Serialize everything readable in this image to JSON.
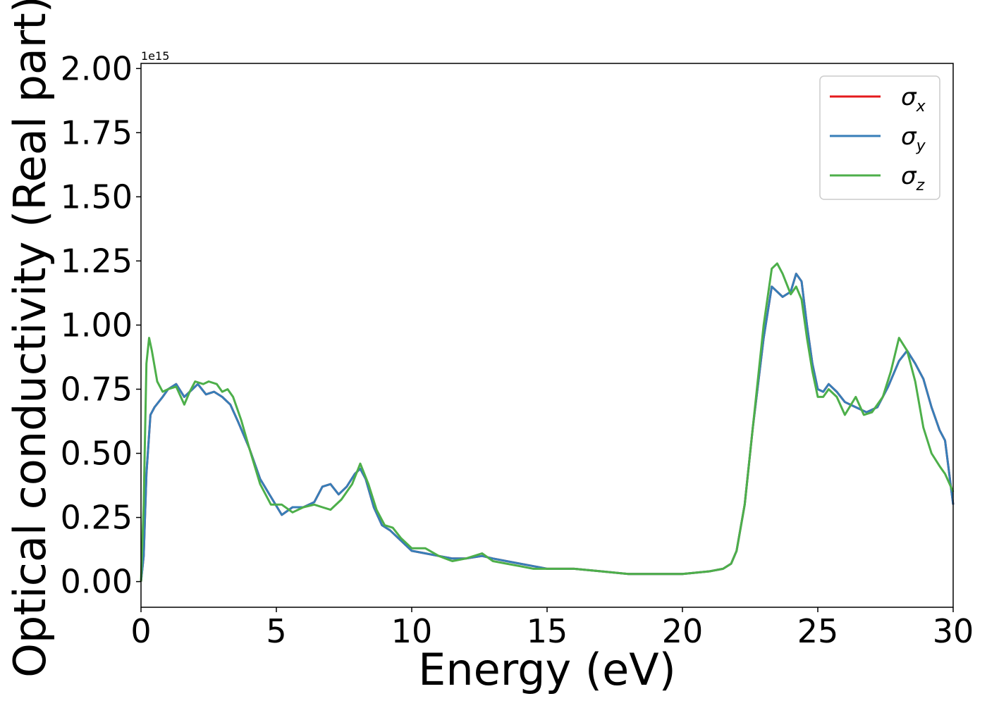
{
  "chart_data": {
    "type": "line",
    "title": "",
    "xlabel": "Energy (eV)",
    "ylabel": "Optical conductivity (Real part)",
    "y_offset_label": "1e15",
    "xlim": [
      0,
      30
    ],
    "ylim": [
      -0.1,
      2.02
    ],
    "x_ticks": [
      0,
      5,
      10,
      15,
      20,
      25,
      30
    ],
    "x_tick_labels": [
      "0",
      "5",
      "10",
      "15",
      "20",
      "25",
      "30"
    ],
    "y_ticks": [
      0,
      0.25,
      0.5,
      0.75,
      1.0,
      1.25,
      1.5,
      1.75,
      2.0
    ],
    "y_tick_labels": [
      "0.00",
      "0.25",
      "0.50",
      "0.75",
      "1.00",
      "1.25",
      "1.50",
      "1.75",
      "2.00"
    ],
    "grid": false,
    "legend_position": "top-right",
    "series": [
      {
        "name": "σx",
        "legend_symbol": "σ",
        "legend_subscript": "x",
        "color": "#e41a1c",
        "x": [
          0,
          0.1,
          0.2,
          0.35,
          0.5,
          0.8,
          1.0,
          1.3,
          1.6,
          1.9,
          2.1,
          2.4,
          2.7,
          3.0,
          3.3,
          3.6,
          4.0,
          4.4,
          4.8,
          5.2,
          5.6,
          6.0,
          6.4,
          6.7,
          7.0,
          7.3,
          7.6,
          7.9,
          8.1,
          8.3,
          8.6,
          8.9,
          9.2,
          9.6,
          10.0,
          10.5,
          11.0,
          11.5,
          12.0,
          12.6,
          13.0,
          13.5,
          14.0,
          14.5,
          15.0,
          16.0,
          17.0,
          18.0,
          19.0,
          20.0,
          21.0,
          21.5,
          21.8,
          22.0,
          22.3,
          22.6,
          23.0,
          23.3,
          23.7,
          24.0,
          24.2,
          24.4,
          24.6,
          24.8,
          25.0,
          25.2,
          25.4,
          25.7,
          26.0,
          26.4,
          26.8,
          27.2,
          27.6,
          28.0,
          28.3,
          28.6,
          28.9,
          29.2,
          29.5,
          29.7,
          30.0
        ],
        "values": [
          0.0,
          0.1,
          0.42,
          0.65,
          0.68,
          0.72,
          0.75,
          0.77,
          0.72,
          0.75,
          0.77,
          0.73,
          0.74,
          0.72,
          0.69,
          0.62,
          0.52,
          0.4,
          0.33,
          0.26,
          0.29,
          0.29,
          0.31,
          0.37,
          0.38,
          0.34,
          0.37,
          0.42,
          0.44,
          0.4,
          0.29,
          0.22,
          0.2,
          0.16,
          0.12,
          0.11,
          0.1,
          0.09,
          0.09,
          0.1,
          0.09,
          0.08,
          0.07,
          0.06,
          0.05,
          0.05,
          0.04,
          0.03,
          0.03,
          0.03,
          0.04,
          0.05,
          0.07,
          0.12,
          0.3,
          0.6,
          0.95,
          1.15,
          1.11,
          1.13,
          1.2,
          1.17,
          1.0,
          0.85,
          0.75,
          0.74,
          0.77,
          0.74,
          0.7,
          0.68,
          0.66,
          0.68,
          0.76,
          0.86,
          0.9,
          0.85,
          0.79,
          0.68,
          0.59,
          0.55,
          0.3
        ]
      },
      {
        "name": "σy",
        "legend_symbol": "σ",
        "legend_subscript": "y",
        "color": "#377eb8",
        "x": [
          0,
          0.1,
          0.2,
          0.35,
          0.5,
          0.8,
          1.0,
          1.3,
          1.6,
          1.9,
          2.1,
          2.4,
          2.7,
          3.0,
          3.3,
          3.6,
          4.0,
          4.4,
          4.8,
          5.2,
          5.6,
          6.0,
          6.4,
          6.7,
          7.0,
          7.3,
          7.6,
          7.9,
          8.1,
          8.3,
          8.6,
          8.9,
          9.2,
          9.6,
          10.0,
          10.5,
          11.0,
          11.5,
          12.0,
          12.6,
          13.0,
          13.5,
          14.0,
          14.5,
          15.0,
          16.0,
          17.0,
          18.0,
          19.0,
          20.0,
          21.0,
          21.5,
          21.8,
          22.0,
          22.3,
          22.6,
          23.0,
          23.3,
          23.7,
          24.0,
          24.2,
          24.4,
          24.6,
          24.8,
          25.0,
          25.2,
          25.4,
          25.7,
          26.0,
          26.4,
          26.8,
          27.2,
          27.6,
          28.0,
          28.3,
          28.6,
          28.9,
          29.2,
          29.5,
          29.7,
          30.0
        ],
        "values": [
          0.0,
          0.1,
          0.42,
          0.65,
          0.68,
          0.72,
          0.75,
          0.77,
          0.72,
          0.75,
          0.77,
          0.73,
          0.74,
          0.72,
          0.69,
          0.62,
          0.52,
          0.4,
          0.33,
          0.26,
          0.29,
          0.29,
          0.31,
          0.37,
          0.38,
          0.34,
          0.37,
          0.42,
          0.44,
          0.4,
          0.29,
          0.22,
          0.2,
          0.16,
          0.12,
          0.11,
          0.1,
          0.09,
          0.09,
          0.1,
          0.09,
          0.08,
          0.07,
          0.06,
          0.05,
          0.05,
          0.04,
          0.03,
          0.03,
          0.03,
          0.04,
          0.05,
          0.07,
          0.12,
          0.3,
          0.6,
          0.95,
          1.15,
          1.11,
          1.13,
          1.2,
          1.17,
          1.0,
          0.85,
          0.75,
          0.74,
          0.77,
          0.74,
          0.7,
          0.68,
          0.66,
          0.68,
          0.76,
          0.86,
          0.9,
          0.85,
          0.79,
          0.68,
          0.59,
          0.55,
          0.3
        ]
      },
      {
        "name": "σz",
        "legend_symbol": "σ",
        "legend_subscript": "z",
        "color": "#4daf4a",
        "x": [
          0,
          0.1,
          0.2,
          0.3,
          0.4,
          0.6,
          0.8,
          1.0,
          1.3,
          1.6,
          1.8,
          2.0,
          2.3,
          2.5,
          2.8,
          3.0,
          3.2,
          3.4,
          3.7,
          4.0,
          4.4,
          4.8,
          5.2,
          5.6,
          6.0,
          6.4,
          6.7,
          7.0,
          7.4,
          7.8,
          8.1,
          8.4,
          8.7,
          9.0,
          9.3,
          9.6,
          10.0,
          10.5,
          11.0,
          11.5,
          12.0,
          12.6,
          13.0,
          13.5,
          14.0,
          14.5,
          15.0,
          16.0,
          17.0,
          18.0,
          19.0,
          20.0,
          21.0,
          21.5,
          21.8,
          22.0,
          22.3,
          22.6,
          23.0,
          23.3,
          23.5,
          23.7,
          24.0,
          24.2,
          24.4,
          24.6,
          24.8,
          25.0,
          25.2,
          25.4,
          25.7,
          26.0,
          26.4,
          26.7,
          27.0,
          27.4,
          27.7,
          28.0,
          28.3,
          28.6,
          28.9,
          29.2,
          29.5,
          29.7,
          30.0
        ],
        "values": [
          0.0,
          0.3,
          0.85,
          0.95,
          0.9,
          0.78,
          0.74,
          0.75,
          0.76,
          0.69,
          0.74,
          0.78,
          0.77,
          0.78,
          0.77,
          0.74,
          0.75,
          0.72,
          0.63,
          0.52,
          0.38,
          0.3,
          0.3,
          0.27,
          0.29,
          0.3,
          0.29,
          0.28,
          0.32,
          0.38,
          0.46,
          0.38,
          0.28,
          0.22,
          0.21,
          0.17,
          0.13,
          0.13,
          0.1,
          0.08,
          0.09,
          0.11,
          0.08,
          0.07,
          0.06,
          0.05,
          0.05,
          0.05,
          0.04,
          0.03,
          0.03,
          0.03,
          0.04,
          0.05,
          0.07,
          0.12,
          0.3,
          0.6,
          1.0,
          1.22,
          1.24,
          1.2,
          1.12,
          1.15,
          1.1,
          0.95,
          0.82,
          0.72,
          0.72,
          0.75,
          0.72,
          0.65,
          0.72,
          0.65,
          0.66,
          0.72,
          0.82,
          0.95,
          0.9,
          0.78,
          0.6,
          0.5,
          0.45,
          0.42,
          0.35
        ]
      }
    ]
  }
}
